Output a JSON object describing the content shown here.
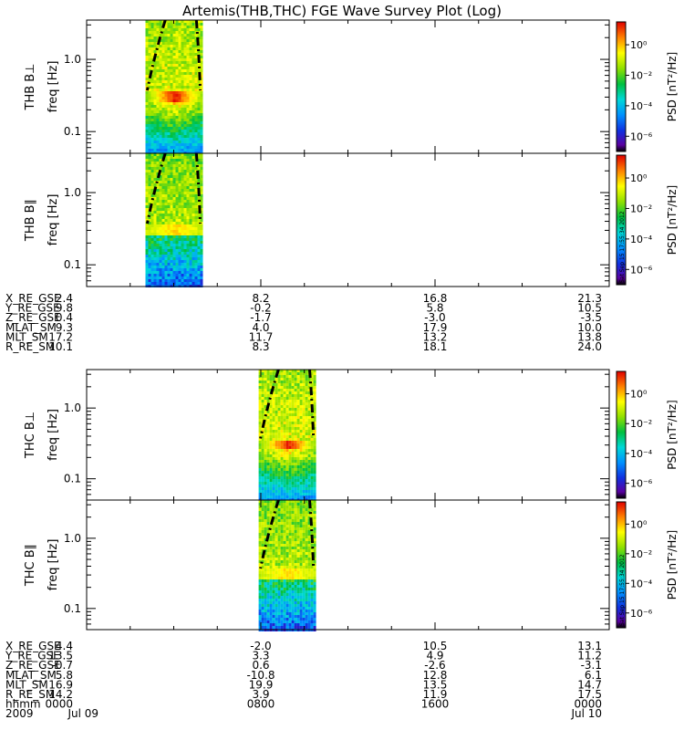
{
  "title": "Artemis(THB,THC) FGE Wave Survey Plot (Log)",
  "colorbar": {
    "label": "PSD [nT²/Hz]",
    "ticks": [
      "10⁰",
      "10⁻²",
      "10⁻⁴",
      "10⁻⁶"
    ],
    "log_range": [
      -7,
      1.5
    ],
    "stamp": "Sat Sep 15 17:55:34 2012"
  },
  "chart_data": [
    {
      "type": "heatmap",
      "probe": "THB",
      "component": "perp",
      "ylabel_probe": "THB B⊥",
      "ylabel_freq": "freq [Hz]",
      "yscale": "log",
      "ylim": [
        0.05,
        3.5
      ],
      "yticks": [
        "1.0",
        "0.1"
      ],
      "ytick_values": [
        1.0,
        0.1
      ],
      "data_interval_hours": [
        2.7,
        5.3
      ],
      "spectral_peak_hz": 0.33
    },
    {
      "type": "heatmap",
      "probe": "THB",
      "component": "parallel",
      "ylabel_probe": "THB B∥",
      "ylabel_freq": "freq [Hz]",
      "yscale": "log",
      "ylim": [
        0.05,
        3.5
      ],
      "yticks": [
        "1.0",
        "0.1"
      ],
      "ytick_values": [
        1.0,
        0.1
      ],
      "data_interval_hours": [
        2.7,
        5.3
      ],
      "spectral_peak_hz": 0.33
    },
    {
      "type": "heatmap",
      "probe": "THC",
      "component": "perp",
      "ylabel_probe": "THC B⊥",
      "ylabel_freq": "freq [Hz]",
      "yscale": "log",
      "ylim": [
        0.05,
        3.5
      ],
      "yticks": [
        "1.0",
        "0.1"
      ],
      "ytick_values": [
        1.0,
        0.1
      ],
      "data_interval_hours": [
        7.9,
        10.5
      ],
      "spectral_peak_hz": 0.33
    },
    {
      "type": "heatmap",
      "probe": "THC",
      "component": "parallel",
      "ylabel_probe": "THC B∥",
      "ylabel_freq": "freq [Hz]",
      "yscale": "log",
      "ylim": [
        0.05,
        3.5
      ],
      "yticks": [
        "1.0",
        "0.1"
      ],
      "ytick_values": [
        1.0,
        0.1
      ],
      "data_interval_hours": [
        7.9,
        10.5
      ],
      "spectral_peak_hz": 0.33
    }
  ],
  "xrange_hours": [
    0,
    24
  ],
  "ephemeris_thb": {
    "rows": [
      {
        "label": "X_RE_GSE",
        "values": [
          "2.4",
          "8.2",
          "16.8",
          "21.3"
        ]
      },
      {
        "label": "Y_RE_GSE",
        "values": [
          "9.8",
          "-0.2",
          "5.8",
          "10.5"
        ]
      },
      {
        "label": "Z_RE_GSE",
        "values": [
          "0.4",
          "-1.7",
          "-3.0",
          "-3.5"
        ]
      },
      {
        "label": "MLAT_SM",
        "values": [
          "9.3",
          "4.0",
          "17.9",
          "10.0"
        ]
      },
      {
        "label": "MLT_SM",
        "values": [
          "17.2",
          "11.7",
          "13.2",
          "13.8"
        ]
      },
      {
        "label": "R_RE_SM",
        "values": [
          "10.1",
          "8.3",
          "18.1",
          "24.0"
        ]
      }
    ]
  },
  "ephemeris_thc": {
    "rows": [
      {
        "label": "X_RE_GSE",
        "values": [
          "4.4",
          "-2.0",
          "10.5",
          "13.1"
        ]
      },
      {
        "label": "Y_RE_GSE",
        "values": [
          "13.5",
          "3.3",
          "4.9",
          "11.2"
        ]
      },
      {
        "label": "Z_RE_GSE",
        "values": [
          "-0.7",
          "0.6",
          "-2.6",
          "-3.1"
        ]
      },
      {
        "label": "MLAT_SM",
        "values": [
          "5.8",
          "-10.8",
          "12.8",
          "6.1"
        ]
      },
      {
        "label": "MLT_SM",
        "values": [
          "16.9",
          "19.9",
          "13.5",
          "14.7"
        ]
      },
      {
        "label": "R_RE_SM",
        "values": [
          "14.2",
          "3.9",
          "11.9",
          "17.5"
        ]
      },
      {
        "label": "hhmm",
        "values": [
          "0000",
          "0800",
          "1600",
          "0000"
        ]
      },
      {
        "label": "2009",
        "values": [
          "Jul 09",
          "",
          "",
          "Jul 10"
        ]
      }
    ]
  }
}
